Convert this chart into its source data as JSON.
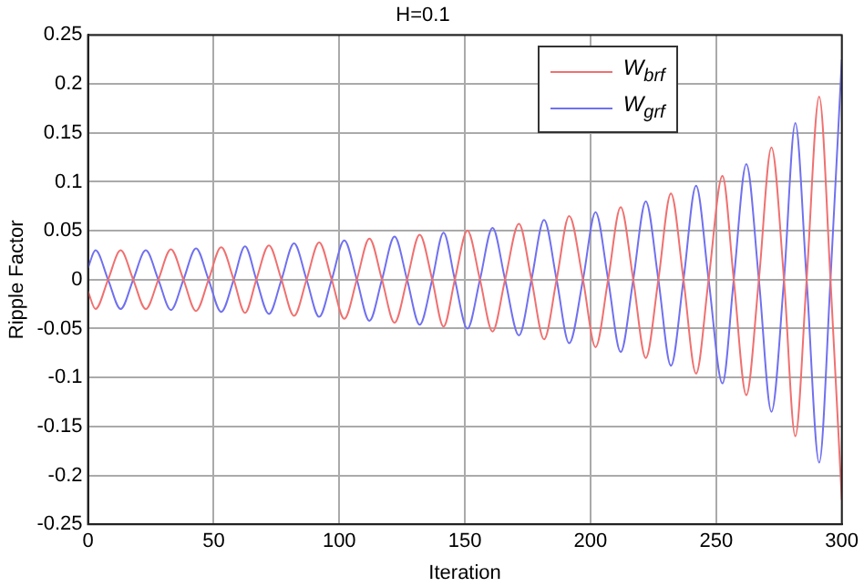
{
  "chart_data": {
    "type": "line",
    "title": "H=0.1",
    "xlabel": "Iteration",
    "ylabel": "Ripple Factor",
    "x": [
      0,
      3,
      8,
      13,
      18,
      23,
      28,
      33,
      38,
      43,
      48,
      53,
      58,
      62.5,
      67,
      72,
      77,
      82,
      87,
      92,
      97,
      102,
      107,
      112,
      117,
      122,
      127,
      132,
      137,
      141.5,
      146,
      151,
      156,
      161,
      166,
      171.5,
      176.5,
      181.5,
      186.5,
      191.5,
      197,
      202,
      207,
      212,
      217,
      222,
      227,
      232,
      237,
      242,
      247,
      252.5,
      257,
      262,
      267,
      272,
      277,
      281.5,
      286,
      291,
      295.5,
      300
    ],
    "series": [
      {
        "name": "W$_{brf}$",
        "color": "#f07070",
        "values": [
          -0.012,
          -0.03,
          0,
          0.03,
          0,
          -0.03,
          0,
          0.031,
          0,
          -0.032,
          0,
          0.033,
          0,
          -0.034,
          0,
          0.035,
          0,
          -0.037,
          0,
          0.038,
          0,
          -0.04,
          0,
          0.042,
          0,
          -0.044,
          0,
          0.046,
          0,
          -0.048,
          0,
          0.05,
          0,
          -0.053,
          0,
          0.057,
          0,
          -0.061,
          0,
          0.065,
          0,
          -0.069,
          0,
          0.074,
          0,
          -0.08,
          0,
          0.088,
          0,
          -0.096,
          0,
          0.106,
          0,
          -0.118,
          0,
          0.135,
          0,
          -0.16,
          0,
          0.187,
          0,
          -0.225
        ]
      },
      {
        "name": "W$_{grf}$",
        "color": "#7070f0",
        "values": [
          0.012,
          0.03,
          0,
          -0.03,
          0,
          0.03,
          0,
          -0.031,
          0,
          0.032,
          0,
          -0.033,
          0,
          0.034,
          0,
          -0.035,
          0,
          0.037,
          0,
          -0.038,
          0,
          0.04,
          0,
          -0.042,
          0,
          0.044,
          0,
          -0.046,
          0,
          0.048,
          0,
          -0.05,
          0,
          0.053,
          0,
          -0.057,
          0,
          0.061,
          0,
          -0.065,
          0,
          0.069,
          0,
          -0.074,
          0,
          0.08,
          0,
          -0.088,
          0,
          0.096,
          0,
          -0.106,
          0,
          0.118,
          0,
          -0.135,
          0,
          0.16,
          0,
          -0.187,
          0,
          0.225
        ]
      }
    ],
    "xlim": [
      0,
      300
    ],
    "xticks": [
      0,
      50,
      100,
      150,
      200,
      250,
      300
    ],
    "ylim": [
      -0.25,
      0.25
    ],
    "yticks": [
      -0.25,
      -0.2,
      -0.15,
      -0.1,
      -0.05,
      0,
      0.05,
      0.1,
      0.15,
      0.2,
      0.25
    ],
    "grid": true,
    "legend": "top right",
    "marker": "none",
    "line_style": "solid"
  }
}
